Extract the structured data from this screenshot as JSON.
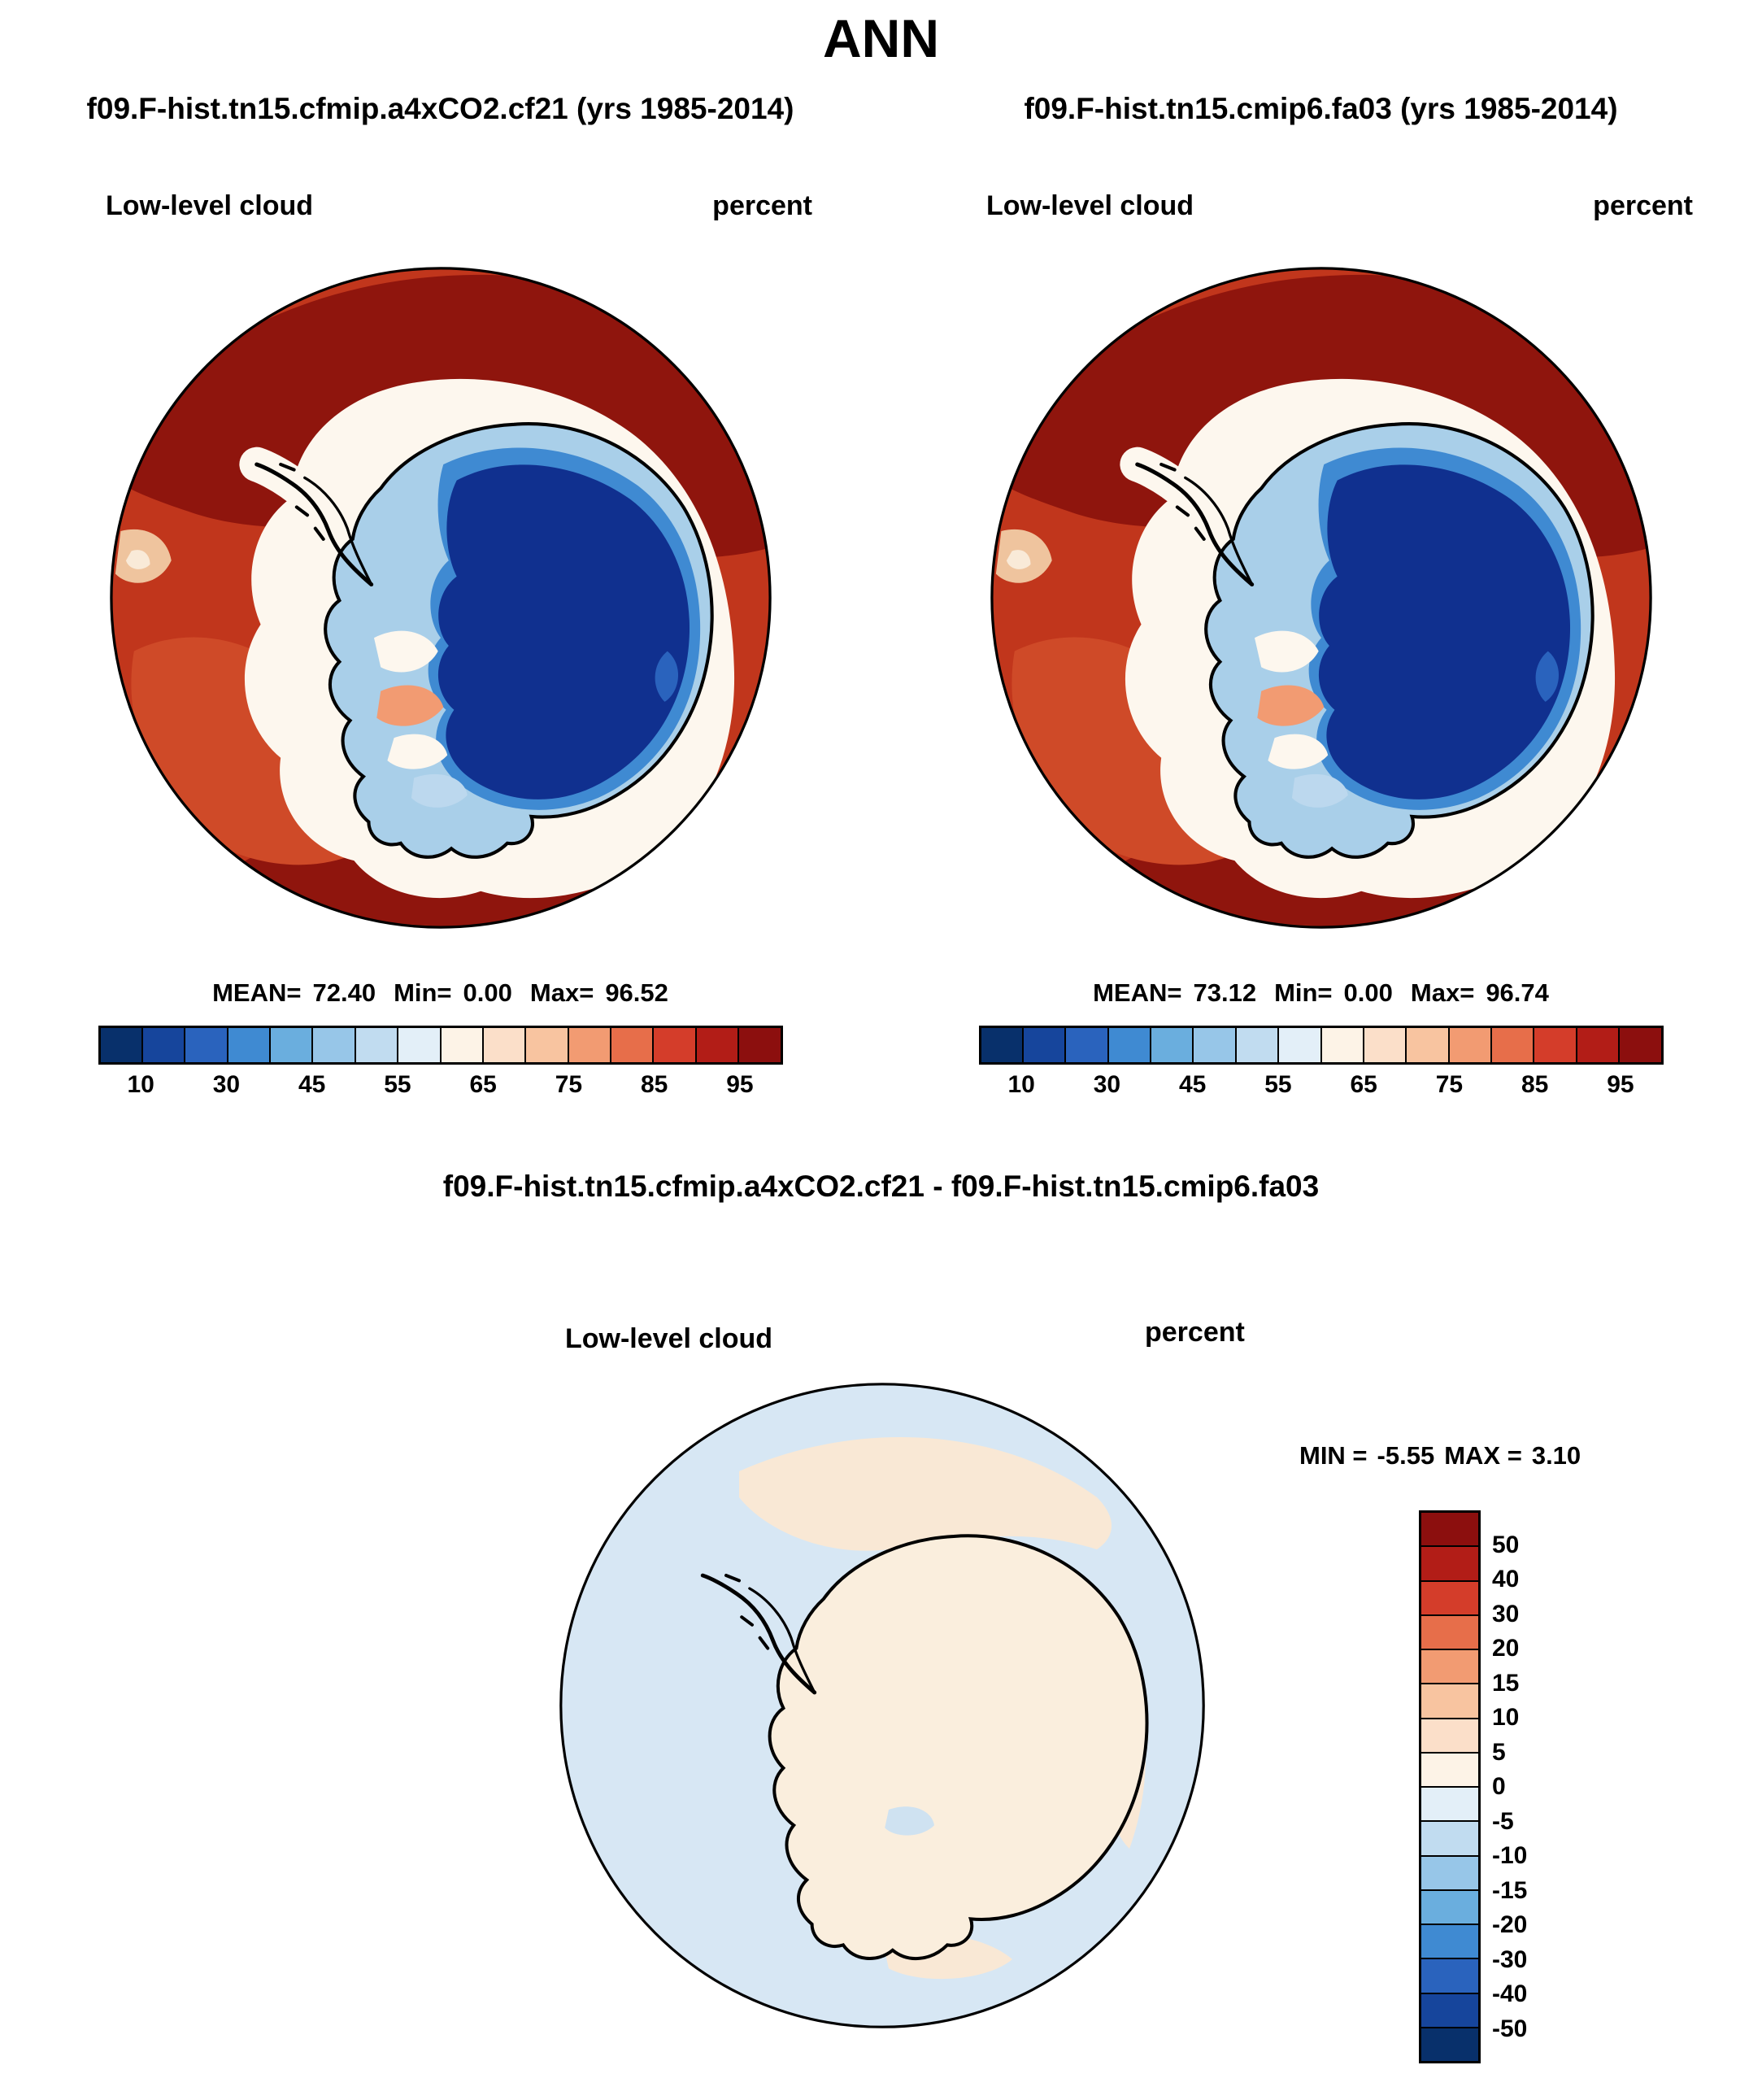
{
  "title": "ANN",
  "labels": {
    "mean_label": "MEAN=",
    "min_label": "Min=",
    "max_label": "Max="
  },
  "panels": [
    {
      "title": "f09.F-hist.tn15.cfmip.a4xCO2.cf21 (yrs 1985-2014)",
      "field_label": "Low-level cloud",
      "units": "percent",
      "stats": {
        "mean": "72.40",
        "min": "0.00",
        "max": "96.52"
      }
    },
    {
      "title": "f09.F-hist.tn15.cmip6.fa03 (yrs 1985-2014)",
      "field_label": "Low-level cloud",
      "units": "percent",
      "stats": {
        "mean": "73.12",
        "min": "0.00",
        "max": "96.74"
      }
    }
  ],
  "diff_panel": {
    "title": "f09.F-hist.tn15.cfmip.a4xCO2.cf21 - f09.F-hist.tn15.cmip6.fa03",
    "field_label": "Low-level cloud",
    "units": "percent",
    "min_label": "MIN =",
    "min_value": "-5.55",
    "max_label": "MAX =",
    "max_value": "3.10"
  },
  "colorbar_percent": {
    "orientation": "horizontal",
    "colors": [
      "#08306b",
      "#16459c",
      "#2a63bd",
      "#3f8ad2",
      "#6aaede",
      "#97c6e8",
      "#c1dcf0",
      "#e3eff8",
      "#fdf3e7",
      "#fbdfc9",
      "#f8c4a0",
      "#f29b72",
      "#e76e4a",
      "#d43d2a",
      "#b21d17",
      "#8c0f0e"
    ],
    "tick_labels": [
      "10",
      "30",
      "45",
      "55",
      "65",
      "75",
      "85",
      "95"
    ],
    "tick_positions": [
      0.0625,
      0.1875,
      0.3125,
      0.4375,
      0.5625,
      0.6875,
      0.8125,
      0.9375
    ]
  },
  "colorbar_diff": {
    "orientation": "vertical",
    "colors": [
      "#8c0f0e",
      "#b21d17",
      "#d43d2a",
      "#e76e4a",
      "#f29b72",
      "#f8c4a0",
      "#fbdfc9",
      "#fdf3e7",
      "#e3eff8",
      "#c1dcf0",
      "#97c6e8",
      "#6aaede",
      "#3f8ad2",
      "#2a63bd",
      "#16459c",
      "#08306b"
    ],
    "tick_labels": [
      "50",
      "40",
      "30",
      "20",
      "15",
      "10",
      "5",
      "0",
      "-5",
      "-10",
      "-15",
      "-20",
      "-30",
      "-40",
      "-50"
    ],
    "tick_positions": [
      0.0625,
      0.125,
      0.1875,
      0.25,
      0.3125,
      0.375,
      0.4375,
      0.5,
      0.5625,
      0.625,
      0.6875,
      0.75,
      0.8125,
      0.875,
      0.9375
    ]
  },
  "chart_data": [
    {
      "type": "heatmap",
      "subtype": "south-polar-stereographic-map",
      "title": "f09.F-hist.tn15.cfmip.a4xCO2.cf21 (yrs 1985-2014)",
      "variable": "Low-level cloud",
      "units": "percent",
      "stats": {
        "mean": 72.4,
        "min": 0.0,
        "max": 96.52
      },
      "levels": [
        10,
        20,
        30,
        40,
        45,
        50,
        55,
        60,
        65,
        70,
        75,
        80,
        85,
        90,
        95
      ],
      "colorbar_tick_labels": [
        10,
        30,
        45,
        55,
        65,
        75,
        85,
        95
      ],
      "legend_position": "bottom",
      "description": "High low-level cloud fraction (85-95%) over the Southern Ocean, darkest red >95% north of the ice edge, values below 10% (dark blue) over the Antarctic continent interior, transition fringe of white/light blue along the coast and West Antarctic ice shelves"
    },
    {
      "type": "heatmap",
      "subtype": "south-polar-stereographic-map",
      "title": "f09.F-hist.tn15.cmip6.fa03 (yrs 1985-2014)",
      "variable": "Low-level cloud",
      "units": "percent",
      "stats": {
        "mean": 73.12,
        "min": 0.0,
        "max": 96.74
      },
      "levels": [
        10,
        20,
        30,
        40,
        45,
        50,
        55,
        60,
        65,
        70,
        75,
        80,
        85,
        90,
        95
      ],
      "colorbar_tick_labels": [
        10,
        30,
        45,
        55,
        65,
        75,
        85,
        95
      ],
      "legend_position": "bottom",
      "description": "Nearly identical pattern to left panel: high low-cloud over Southern Ocean, near-zero over Antarctica"
    },
    {
      "type": "heatmap",
      "subtype": "south-polar-stereographic-map",
      "title": "f09.F-hist.tn15.cfmip.a4xCO2.cf21 - f09.F-hist.tn15.cmip6.fa03",
      "variable": "Low-level cloud difference",
      "units": "percent",
      "stats": {
        "min": -5.55,
        "max": 3.1
      },
      "levels": [
        50,
        40,
        30,
        20,
        15,
        10,
        5,
        0,
        -5,
        -10,
        -15,
        -20,
        -30,
        -40,
        -50
      ],
      "legend_position": "right",
      "description": "Differences are small: weak negative values (0 to -5, pale blue) over most of the ocean, weak positive values (0 to +5, pale cream) over the continent and patches of ocean"
    }
  ]
}
